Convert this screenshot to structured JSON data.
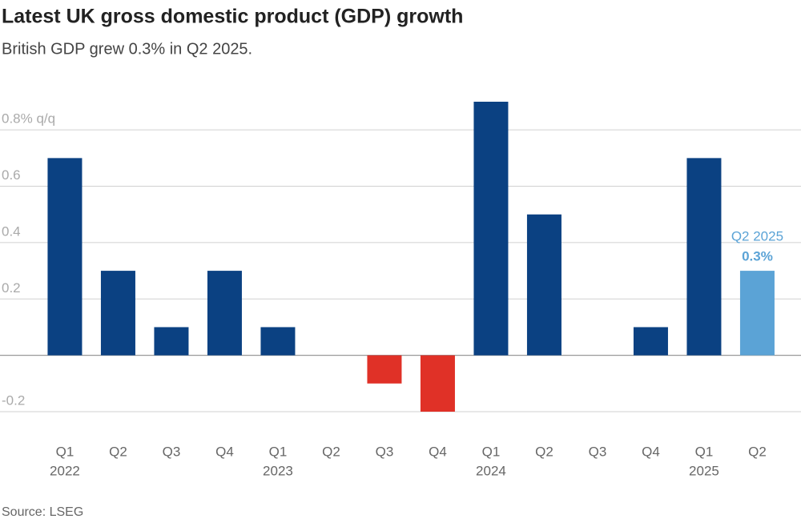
{
  "chart_data": {
    "type": "bar",
    "title": "Latest UK gross domestic product (GDP) growth",
    "subtitle": "British GDP grew 0.3% in Q2 2025.",
    "source": "Source: LSEG",
    "categories": [
      [
        "Q1",
        "2022"
      ],
      [
        "Q2"
      ],
      [
        "Q3"
      ],
      [
        "Q4"
      ],
      [
        "Q1",
        "2023"
      ],
      [
        "Q2"
      ],
      [
        "Q3"
      ],
      [
        "Q4"
      ],
      [
        "Q1",
        "2024"
      ],
      [
        "Q2"
      ],
      [
        "Q3"
      ],
      [
        "Q4"
      ],
      [
        "Q1",
        "2025"
      ],
      [
        "Q2"
      ]
    ],
    "values": [
      0.7,
      0.3,
      0.1,
      0.3,
      0.1,
      0,
      -0.1,
      -0.2,
      0.9,
      0.5,
      0,
      0.1,
      0.7,
      0.3
    ],
    "colors": [
      "#0b4182",
      "#0b4182",
      "#0b4182",
      "#0b4182",
      "#0b4182",
      "#0b4182",
      "#e03127",
      "#e03127",
      "#0b4182",
      "#0b4182",
      "#0b4182",
      "#0b4182",
      "#0b4182",
      "#5ba3d6"
    ],
    "ylim": [
      -0.2,
      0.9
    ],
    "yticks": [
      {
        "value": 0.8,
        "label": "0.8% q/q"
      },
      0.6,
      0.4,
      0.2,
      -0.2
    ],
    "grid": true,
    "annotation": {
      "title": "Q2 2025",
      "value_label": "0.3%"
    }
  }
}
